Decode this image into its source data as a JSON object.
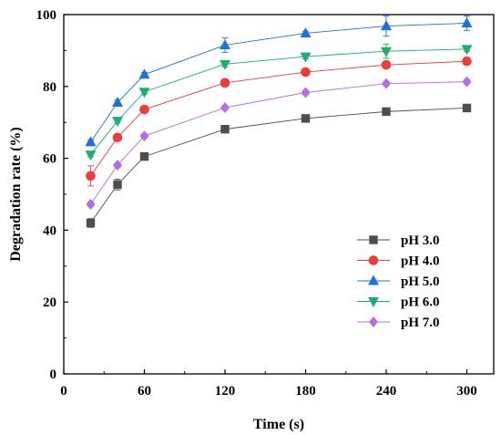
{
  "chart_data": {
    "type": "line",
    "title": "",
    "xlabel": "Time (s)",
    "ylabel": "Degradation rate (%)",
    "xlim": [
      0,
      320
    ],
    "ylim": [
      0,
      100
    ],
    "xticks": [
      0,
      60,
      120,
      180,
      240,
      300
    ],
    "yticks": [
      0,
      20,
      40,
      60,
      80,
      100
    ],
    "grid": false,
    "legend_position": "bottom-right",
    "x": [
      20,
      40,
      60,
      120,
      180,
      240,
      300
    ],
    "series": [
      {
        "name": "pH 3.0",
        "color": "#4d4d4d",
        "marker": "square",
        "values": [
          42,
          52.7,
          60.5,
          68.1,
          71.1,
          73,
          74
        ],
        "errors": [
          1.2,
          1.5,
          0.8,
          0.6,
          0.6,
          0.6,
          0.6
        ]
      },
      {
        "name": "pH 4.0",
        "color": "#ef3b3b",
        "marker": "circle",
        "values": [
          55.1,
          65.8,
          73.6,
          81,
          84,
          86,
          87
        ],
        "errors": [
          2.8,
          0.8,
          0.8,
          0.8,
          0.6,
          0.6,
          0.6
        ]
      },
      {
        "name": "pH 5.0",
        "color": "#1f6fe0",
        "marker": "triangle-up",
        "values": [
          64.5,
          75.5,
          83.3,
          91.5,
          94.8,
          96.8,
          97.6
        ],
        "errors": [
          0.6,
          0.8,
          0.6,
          2,
          0.6,
          2.8,
          2
        ]
      },
      {
        "name": "pH 6.0",
        "color": "#1aae6f",
        "marker": "triangle-down",
        "values": [
          61,
          70.4,
          78.5,
          86.2,
          88.3,
          89.8,
          90.4
        ],
        "errors": [
          0.6,
          0.6,
          0.6,
          0.8,
          0.6,
          2,
          0.6
        ]
      },
      {
        "name": "pH 7.0",
        "color": "#b36ee6",
        "marker": "diamond",
        "values": [
          47.2,
          58.1,
          66.2,
          74.1,
          78.3,
          80.8,
          81.3
        ],
        "errors": [
          0.6,
          0.6,
          0.6,
          0.6,
          0.6,
          0.6,
          0.6
        ]
      }
    ]
  }
}
